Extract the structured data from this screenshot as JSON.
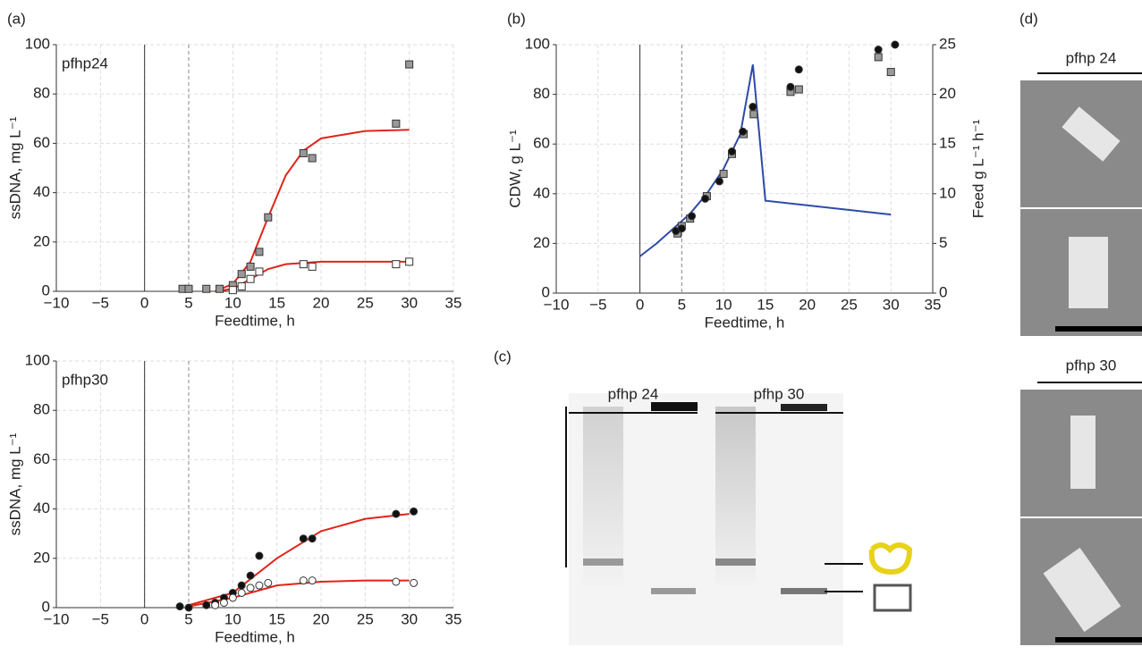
{
  "chart_data": [
    {
      "type": "scatter",
      "label": "(a)",
      "annotation": "pfhp24",
      "xlabel": "Feedtime, h",
      "ylabel": "ssDNA, mg L⁻¹",
      "xlim": [
        -10,
        35
      ],
      "ylim": [
        0,
        100
      ],
      "xticks": [
        {
          "value": -10,
          "label": "−10"
        },
        {
          "value": -5,
          "label": "−5"
        },
        0,
        5,
        10,
        15,
        20,
        25,
        30,
        35
      ],
      "yticks": [
        0,
        20,
        40,
        60,
        80,
        100
      ],
      "grid": true,
      "vlines": [
        {
          "x": 0,
          "style": "solid"
        },
        {
          "x": 5,
          "style": "dashed"
        }
      ],
      "series": [
        {
          "mode": "line",
          "color": "#e0251b",
          "x": [
            8,
            10,
            12,
            14,
            16,
            18,
            20,
            25,
            30
          ],
          "values": [
            0,
            3,
            12,
            30,
            47,
            57,
            62,
            65,
            65.5
          ]
        },
        {
          "mode": "line",
          "color": "#e0251b",
          "x": [
            8,
            10,
            12,
            14,
            16,
            18,
            20,
            25,
            30
          ],
          "values": [
            0,
            1,
            5,
            9,
            11,
            11.5,
            12,
            12,
            12
          ]
        },
        {
          "mode": "markers",
          "marker": "square",
          "color": "#999999",
          "x": [
            4.3,
            5,
            7,
            8.5,
            10,
            11,
            12,
            13,
            14,
            18,
            19,
            28.5,
            30
          ],
          "values": [
            1,
            1,
            1,
            1,
            2.5,
            7,
            10,
            16,
            30,
            56,
            54,
            68,
            92
          ]
        },
        {
          "mode": "markers",
          "marker": "square",
          "color": "#ffffff",
          "x": [
            10,
            11,
            12,
            13,
            18,
            19,
            28.5,
            30
          ],
          "values": [
            0.5,
            2,
            5,
            8,
            11,
            10,
            11,
            12
          ]
        }
      ]
    },
    {
      "type": "scatter",
      "annotation": "pfhp30",
      "xlabel": "Feedtime, h",
      "ylabel": "ssDNA, mg L⁻¹",
      "xlim": [
        -10,
        35
      ],
      "ylim": [
        0,
        100
      ],
      "xticks": [
        {
          "value": -10,
          "label": "−10"
        },
        {
          "value": -5,
          "label": "−5"
        },
        0,
        5,
        10,
        15,
        20,
        25,
        30,
        35
      ],
      "yticks": [
        0,
        20,
        40,
        60,
        80,
        100
      ],
      "grid": true,
      "vlines": [
        {
          "x": 0,
          "style": "solid"
        },
        {
          "x": 5,
          "style": "dashed"
        }
      ],
      "series": [
        {
          "mode": "line",
          "color": "#e0251b",
          "x": [
            5,
            10,
            15,
            20,
            25,
            30
          ],
          "values": [
            1,
            6,
            20,
            31,
            36,
            38
          ]
        },
        {
          "mode": "line",
          "color": "#e0251b",
          "x": [
            5,
            10,
            15,
            20,
            25,
            30
          ],
          "values": [
            0.5,
            4,
            9,
            10.5,
            11,
            11
          ]
        },
        {
          "mode": "markers",
          "marker": "circle",
          "color": "#111111",
          "x": [
            4,
            5,
            7,
            8,
            9,
            10,
            11,
            12,
            13,
            18,
            19,
            28.5,
            30.5
          ],
          "values": [
            0.5,
            0,
            1,
            2,
            4,
            6,
            9,
            13,
            21,
            28,
            28,
            38,
            39
          ]
        },
        {
          "mode": "markers",
          "marker": "circle",
          "color": "#ffffff",
          "x": [
            8,
            9,
            10,
            11,
            12,
            13,
            14,
            18,
            19,
            28.5,
            30.5
          ],
          "values": [
            1,
            2,
            4,
            6,
            8,
            9,
            10,
            11,
            11,
            10.5,
            10
          ]
        }
      ]
    },
    {
      "type": "scatter",
      "label": "(b)",
      "xlabel": "Feedtime, h",
      "ylabel": "CDW, g L⁻¹",
      "y2label": "Feed g L⁻¹ h⁻¹",
      "xlim": [
        -10,
        35
      ],
      "ylim": [
        0,
        100
      ],
      "y2lim": [
        0,
        25
      ],
      "xticks": [
        {
          "value": -10,
          "label": "−10"
        },
        {
          "value": -5,
          "label": "−5"
        },
        0,
        5,
        10,
        15,
        20,
        25,
        30,
        35
      ],
      "yticks": [
        0,
        20,
        40,
        60,
        80,
        100
      ],
      "y2ticks": [
        0,
        5,
        10,
        15,
        20,
        25
      ],
      "grid": true,
      "vlines": [
        {
          "x": 0,
          "style": "solid"
        },
        {
          "x": 5,
          "style": "dashed"
        }
      ],
      "series": [
        {
          "mode": "line",
          "axis": "y2",
          "color": "#2e4aa8",
          "x": [
            0,
            2,
            4,
            6,
            8,
            10,
            12,
            13.5,
            15,
            30
          ],
          "values": [
            3.7,
            5,
            6.5,
            8,
            10,
            12.5,
            16,
            23,
            9.3,
            7.9
          ]
        },
        {
          "mode": "markers",
          "marker": "square",
          "color": "#999999",
          "x": [
            4.5,
            5,
            6,
            8,
            10,
            11,
            12.4,
            13.6,
            18,
            19,
            28.5,
            30
          ],
          "values": [
            24,
            27,
            30,
            39,
            48,
            56,
            64,
            72,
            81,
            82,
            95,
            89
          ]
        },
        {
          "mode": "markers",
          "marker": "circle",
          "color": "#111111",
          "x": [
            4.3,
            5,
            6.2,
            7.8,
            9.5,
            11,
            12.3,
            13.5,
            18,
            19,
            28.5,
            30.5
          ],
          "values": [
            25,
            26,
            31,
            38,
            45,
            57,
            65,
            75,
            83,
            90,
            98,
            100
          ]
        }
      ]
    }
  ],
  "gel": {
    "label": "(c)",
    "lanes": [
      "pfhp 24",
      "pfhp 30"
    ]
  },
  "micrographs": {
    "label": "(d)",
    "samples": [
      "pfhp 24",
      "pfhp 30"
    ]
  }
}
